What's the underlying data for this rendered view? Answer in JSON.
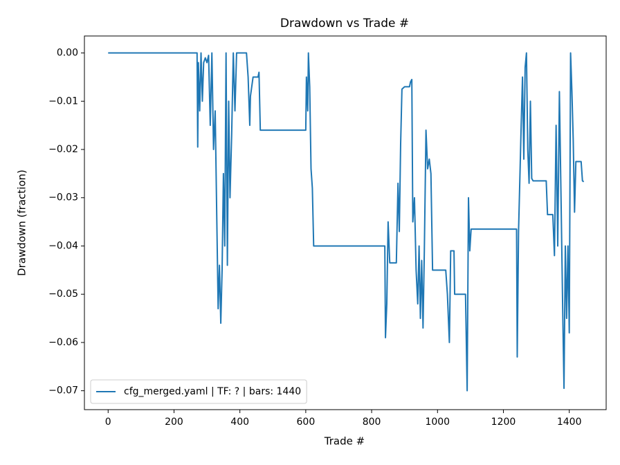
{
  "chart_data": {
    "type": "line",
    "title": "Drawdown vs Trade #",
    "xlabel": "Trade #",
    "ylabel": "Drawdown (fraction)",
    "xlim": [
      -72,
      1512
    ],
    "ylim": [
      -0.07392,
      0.00352
    ],
    "xticks": [
      0,
      200,
      400,
      600,
      800,
      1000,
      1200,
      1400
    ],
    "yticks": [
      {
        "value": 0,
        "label": "0.00"
      },
      {
        "value": -0.01,
        "label": "−0.01"
      },
      {
        "value": -0.02,
        "label": "−0.02"
      },
      {
        "value": -0.03,
        "label": "−0.03"
      },
      {
        "value": -0.04,
        "label": "−0.04"
      },
      {
        "value": -0.05,
        "label": "−0.05"
      },
      {
        "value": -0.06,
        "label": "−0.06"
      },
      {
        "value": -0.07,
        "label": "−0.07"
      }
    ],
    "legend": "lower left",
    "series": [
      {
        "name": "cfg_merged.yaml | TF: ? | bars: 1440",
        "color": "#1f77b4",
        "x": [
          0,
          270,
          272,
          274,
          278,
          282,
          286,
          290,
          295,
          300,
          305,
          310,
          315,
          320,
          325,
          330,
          334,
          338,
          342,
          346,
          350,
          354,
          358,
          362,
          366,
          370,
          375,
          380,
          385,
          390,
          400,
          420,
          425,
          430,
          432,
          440,
          455,
          458,
          462,
          600,
          602,
          606,
          608,
          612,
          616,
          620,
          624,
          840,
          842,
          846,
          850,
          855,
          875,
          880,
          884,
          888,
          892,
          900,
          915,
          918,
          922,
          925,
          930,
          935,
          940,
          944,
          948,
          952,
          956,
          960,
          965,
          970,
          975,
          980,
          985,
          1025,
          1030,
          1036,
          1040,
          1050,
          1052,
          1085,
          1090,
          1094,
          1098,
          1102,
          1240,
          1242,
          1246,
          1250,
          1254,
          1258,
          1262,
          1266,
          1270,
          1274,
          1278,
          1282,
          1286,
          1290,
          1330,
          1334,
          1350,
          1355,
          1360,
          1365,
          1370,
          1375,
          1380,
          1384,
          1388,
          1392,
          1396,
          1400,
          1404,
          1408,
          1412,
          1416,
          1420,
          1436,
          1440,
          1444
        ],
        "values": [
          0,
          0,
          -0.0195,
          -0.002,
          -0.012,
          0,
          -0.01,
          -0.002,
          -0.001,
          -0.002,
          -0.0005,
          -0.015,
          0,
          -0.02,
          -0.012,
          -0.035,
          -0.053,
          -0.044,
          -0.056,
          -0.045,
          -0.025,
          -0.04,
          0,
          -0.044,
          -0.01,
          -0.03,
          -0.017,
          0,
          -0.012,
          0,
          0,
          0,
          -0.005,
          -0.015,
          -0.009,
          -0.005,
          -0.005,
          -0.004,
          -0.016,
          -0.016,
          -0.005,
          -0.012,
          0,
          -0.007,
          -0.024,
          -0.028,
          -0.04,
          -0.04,
          -0.059,
          -0.052,
          -0.035,
          -0.0435,
          -0.0435,
          -0.027,
          -0.037,
          -0.019,
          -0.0075,
          -0.007,
          -0.007,
          -0.006,
          -0.0055,
          -0.035,
          -0.03,
          -0.045,
          -0.052,
          -0.04,
          -0.055,
          -0.043,
          -0.057,
          -0.041,
          -0.016,
          -0.024,
          -0.022,
          -0.025,
          -0.045,
          -0.045,
          -0.05,
          -0.06,
          -0.041,
          -0.041,
          -0.05,
          -0.05,
          -0.07,
          -0.03,
          -0.041,
          -0.0365,
          -0.0365,
          -0.063,
          -0.037,
          -0.026,
          -0.015,
          -0.005,
          -0.022,
          -0.003,
          0,
          -0.02,
          -0.027,
          -0.01,
          -0.026,
          -0.0265,
          -0.0265,
          -0.0335,
          -0.0335,
          -0.042,
          -0.015,
          -0.04,
          -0.008,
          -0.03,
          -0.053,
          -0.0695,
          -0.04,
          -0.055,
          -0.04,
          -0.058,
          0,
          -0.008,
          -0.018,
          -0.033,
          -0.0225,
          -0.0225,
          -0.0265,
          -0.0267
        ]
      }
    ]
  }
}
